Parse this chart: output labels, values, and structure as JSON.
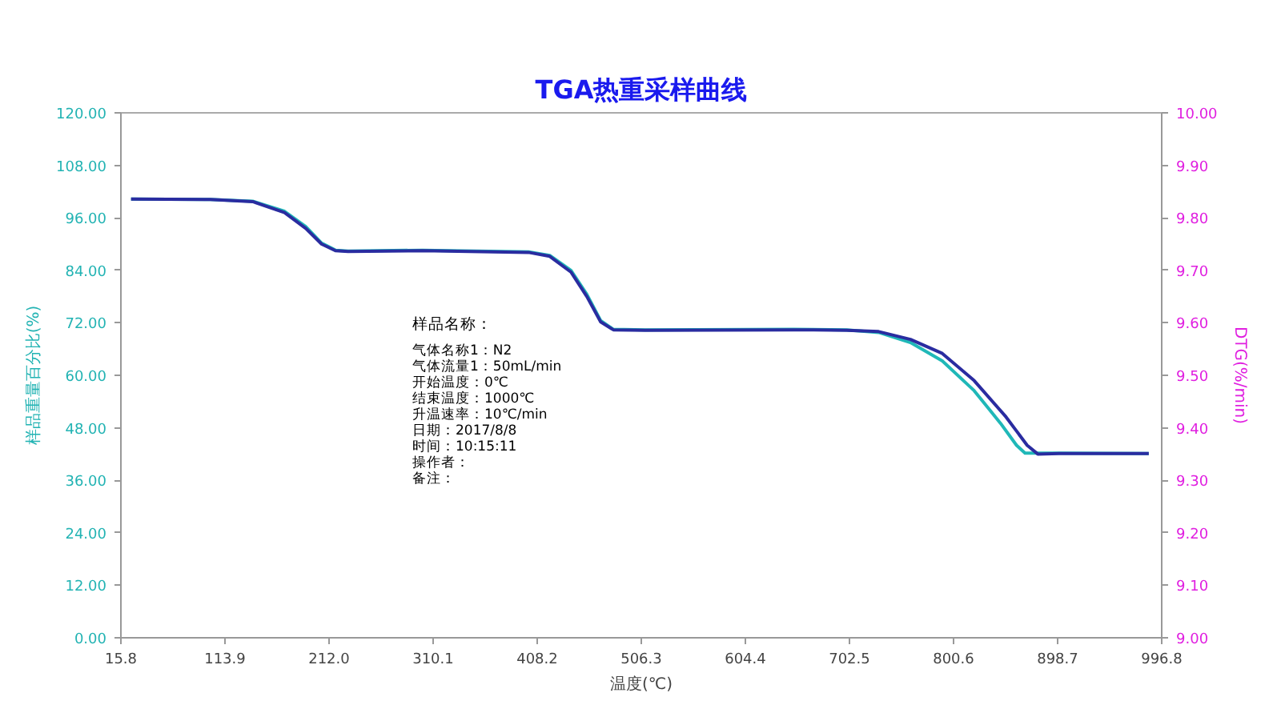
{
  "chart_data": {
    "type": "line",
    "title": "TGA热重采样曲线",
    "xlabel": "温度(℃)",
    "ylabel": "样品重量百分比(%)",
    "y2label": "DTG(%/min)",
    "xlim": [
      15.8,
      996.8
    ],
    "xticks": [
      15.8,
      113.9,
      {
        "value": 212.0,
        "label": "212.0"
      },
      310.1,
      408.2,
      506.3,
      604.4,
      702.5,
      800.6,
      898.7,
      996.8
    ],
    "ylim": [
      0,
      120
    ],
    "yticks": [
      {
        "value": 0,
        "label": "0.00"
      },
      {
        "value": 12,
        "label": "12.00"
      },
      {
        "value": 24,
        "label": "24.00"
      },
      {
        "value": 36,
        "label": "36.00"
      },
      {
        "value": 48,
        "label": "48.00"
      },
      {
        "value": 60,
        "label": "60.00"
      },
      {
        "value": 72,
        "label": "72.00"
      },
      {
        "value": 84,
        "label": "84.00"
      },
      {
        "value": 96,
        "label": "96.00"
      },
      {
        "value": 108,
        "label": "108.00"
      },
      {
        "value": 120,
        "label": "120.00"
      }
    ],
    "y2lim": [
      9.0,
      10.0
    ],
    "y2ticks": [
      {
        "value": 9.0,
        "label": "9.00"
      },
      {
        "value": 9.1,
        "label": "9.10"
      },
      {
        "value": 9.2,
        "label": "9.20"
      },
      {
        "value": 9.3,
        "label": "9.30"
      },
      {
        "value": 9.4,
        "label": "9.40"
      },
      {
        "value": 9.5,
        "label": "9.50"
      },
      {
        "value": 9.6,
        "label": "9.60"
      },
      {
        "value": 9.7,
        "label": "9.70"
      },
      {
        "value": 9.8,
        "label": "9.80"
      },
      {
        "value": 9.9,
        "label": "9.90"
      },
      {
        "value": 10.0,
        "label": "10.00"
      }
    ],
    "series": [
      {
        "color": "#20b8b8",
        "x": [
          25.4,
          100,
          140,
          170,
          190,
          205,
          218,
          230,
          300,
          400,
          420,
          440,
          455,
          468,
          480,
          510,
          650,
          700,
          730,
          760,
          790,
          820,
          845,
          860,
          868,
          900,
          984.6
        ],
        "values": [
          100.3,
          100.2,
          99.8,
          97.5,
          94,
          90.2,
          88.6,
          88.4,
          88.6,
          88.2,
          87.4,
          84,
          78.5,
          72.5,
          70.5,
          70.4,
          70.5,
          70.4,
          69.8,
          67.5,
          63.3,
          56.5,
          49,
          44,
          42.2,
          42.2,
          42.1
        ]
      },
      {
        "color": "#2a2ca0",
        "x": [
          25.4,
          100,
          140,
          170,
          190,
          205,
          218,
          230,
          300,
          400,
          420,
          440,
          455,
          468,
          480,
          510,
          650,
          700,
          730,
          760,
          790,
          820,
          850,
          870,
          880,
          900,
          984.6
        ],
        "values": [
          100.3,
          100.2,
          99.7,
          97.2,
          93.6,
          90,
          88.5,
          88.3,
          88.5,
          88.1,
          87.2,
          83.6,
          78,
          72.2,
          70.4,
          70.3,
          70.4,
          70.3,
          70,
          68.2,
          65,
          58.8,
          50.5,
          44,
          42,
          42.1,
          42.1
        ]
      }
    ],
    "annotations": [
      "样品名称：",
      "气体名称1：N2",
      "气体流量1：50mL/min",
      "开始温度：0℃",
      "结束温度：1000℃",
      "升温速率：10℃/min",
      "日期：2017/8/8",
      "时间：10:15:11",
      "操作者：",
      "备注："
    ],
    "grid": false,
    "marker": "none",
    "line_style": "solid"
  }
}
